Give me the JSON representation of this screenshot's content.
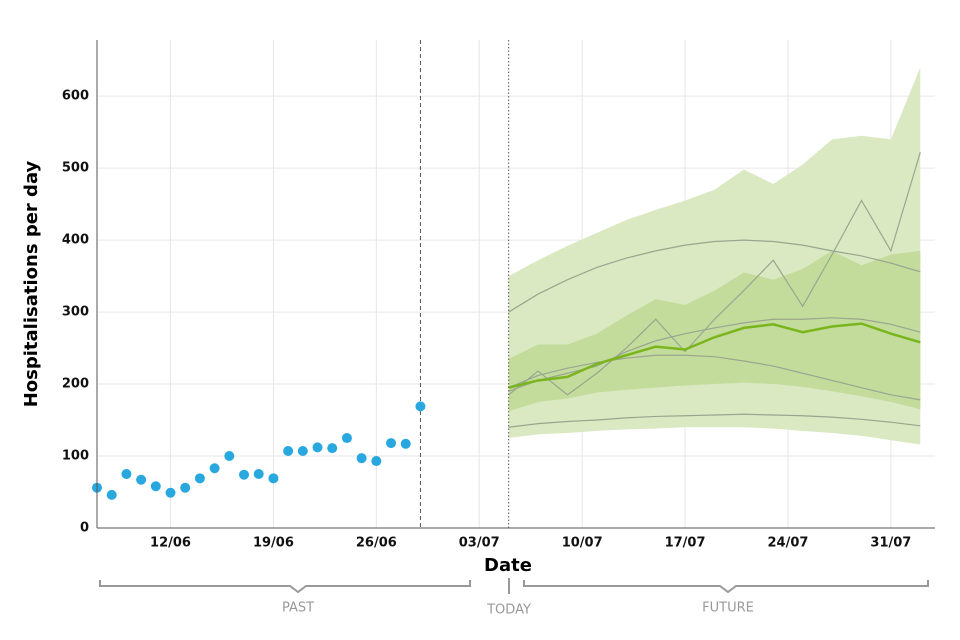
{
  "chart_data": {
    "type": "line",
    "xlabel": "Date",
    "ylabel": "Hospitalisations per day",
    "xlim": [
      0,
      57
    ],
    "xticks": [
      {
        "value": 5,
        "label": "12/06"
      },
      {
        "value": 12,
        "label": "19/06"
      },
      {
        "value": 19,
        "label": "26/06"
      },
      {
        "value": 26,
        "label": "03/07"
      },
      {
        "value": 33,
        "label": "10/07"
      },
      {
        "value": 40,
        "label": "17/07"
      },
      {
        "value": 47,
        "label": "24/07"
      },
      {
        "value": 54,
        "label": "31/07"
      }
    ],
    "ylim": [
      0,
      678
    ],
    "yticks": [
      0,
      100,
      200,
      300,
      400,
      500,
      600
    ],
    "grid": true,
    "observed": {
      "color": "#29a8e0",
      "x": [
        0,
        1,
        2,
        3,
        4,
        5,
        6,
        7,
        8,
        9,
        10,
        11,
        12,
        13,
        14,
        15,
        16,
        17,
        18,
        19,
        20,
        21,
        22
      ],
      "values": [
        56,
        46,
        75,
        67,
        58,
        49,
        56,
        69,
        83,
        100,
        74,
        75,
        69,
        107,
        107,
        112,
        111,
        125,
        97,
        93,
        118,
        117,
        169
      ]
    },
    "vlines": [
      {
        "x": 22,
        "style": "dashed"
      },
      {
        "x": 28,
        "style": "dotted"
      }
    ],
    "forecast_x": [
      28,
      30,
      32,
      34,
      36,
      38,
      40,
      42,
      44,
      46,
      48,
      50,
      52,
      54,
      56
    ],
    "bands": [
      {
        "color": "#dbe9c3",
        "upper": [
          350,
          372,
          392,
          410,
          428,
          442,
          455,
          470,
          498,
          478,
          505,
          540,
          545,
          540,
          640
        ],
        "lower": [
          125,
          130,
          132,
          135,
          137,
          138,
          140,
          140,
          140,
          138,
          135,
          132,
          128,
          122,
          116
        ]
      },
      {
        "color": "#c3dc9c",
        "upper": [
          235,
          255,
          255,
          270,
          295,
          318,
          310,
          330,
          355,
          345,
          360,
          385,
          365,
          380,
          385
        ],
        "lower": [
          162,
          175,
          180,
          188,
          192,
          195,
          198,
          200,
          202,
          200,
          196,
          190,
          183,
          175,
          165
        ]
      }
    ],
    "series": [
      {
        "color": "#9aa58f",
        "values": [
          300,
          325,
          345,
          362,
          375,
          385,
          393,
          398,
          400,
          398,
          393,
          385,
          378,
          368,
          356
        ]
      },
      {
        "color": "#9aa58f",
        "values": [
          185,
          218,
          185,
          215,
          250,
          290,
          245,
          290,
          330,
          372,
          308,
          380,
          455,
          385,
          522
        ]
      },
      {
        "color": "#9aa58f",
        "values": [
          195,
          212,
          222,
          230,
          236,
          240,
          240,
          238,
          232,
          225,
          215,
          205,
          195,
          185,
          178
        ]
      },
      {
        "color": "#9aa58f",
        "values": [
          140,
          145,
          148,
          150,
          153,
          155,
          156,
          157,
          158,
          157,
          156,
          154,
          151,
          147,
          142
        ]
      },
      {
        "color": "#9aa58f",
        "values": [
          190,
          205,
          215,
          225,
          245,
          260,
          270,
          278,
          285,
          290,
          290,
          292,
          290,
          283,
          272
        ]
      },
      {
        "color": "#7ab51d",
        "values": [
          195,
          205,
          210,
          228,
          240,
          252,
          248,
          265,
          278,
          283,
          272,
          280,
          284,
          270,
          258
        ]
      }
    ],
    "annotations": [
      "PAST",
      "TODAY",
      "FUTURE"
    ]
  }
}
